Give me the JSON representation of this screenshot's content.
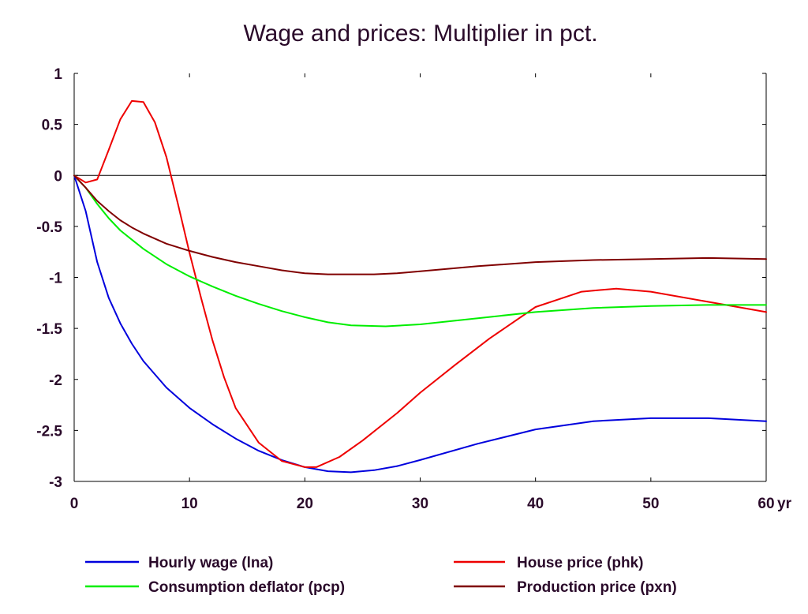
{
  "chart_data": {
    "type": "line",
    "title": "Wage and prices: Multiplier in pct.",
    "xlabel": "",
    "ylabel": "",
    "x_unit_label": "yr",
    "xlim": [
      0,
      60
    ],
    "ylim": [
      -3,
      1
    ],
    "x_ticks": [
      0,
      10,
      20,
      30,
      40,
      50,
      60
    ],
    "x_tick_labels": [
      "0",
      "10",
      "20",
      "30",
      "40",
      "50",
      "60"
    ],
    "y_ticks": [
      1,
      0.5,
      0,
      -0.5,
      -1,
      -1.5,
      -2,
      -2.5,
      -3
    ],
    "y_tick_labels": [
      "1",
      "0.5",
      "0",
      "-0.5",
      "-1",
      "-1.5",
      "-2",
      "-2.5",
      "-3"
    ],
    "zero_line": true,
    "grid": false,
    "legend_position": "bottom",
    "series": [
      {
        "name": "Hourly wage (lna)",
        "color": "#0000dd",
        "x": [
          0,
          1,
          2,
          3,
          4,
          5,
          6,
          8,
          10,
          12,
          14,
          16,
          18,
          20,
          22,
          24,
          26,
          28,
          30,
          35,
          40,
          45,
          50,
          55,
          60
        ],
        "values": [
          0,
          -0.35,
          -0.85,
          -1.2,
          -1.45,
          -1.65,
          -1.82,
          -2.08,
          -2.28,
          -2.44,
          -2.58,
          -2.7,
          -2.79,
          -2.86,
          -2.9,
          -2.91,
          -2.89,
          -2.85,
          -2.79,
          -2.63,
          -2.49,
          -2.41,
          -2.38,
          -2.38,
          -2.41
        ]
      },
      {
        "name": "House price (phk)",
        "color": "#ee0000",
        "x": [
          0,
          1,
          2,
          3,
          4,
          5,
          6,
          7,
          8,
          9,
          10,
          11,
          12,
          13,
          14,
          16,
          18,
          20,
          21,
          23,
          25,
          28,
          30,
          33,
          36,
          40,
          44,
          47,
          50,
          55,
          60
        ],
        "values": [
          0,
          -0.07,
          -0.04,
          0.25,
          0.55,
          0.73,
          0.72,
          0.52,
          0.18,
          -0.28,
          -0.76,
          -1.2,
          -1.62,
          -1.98,
          -2.28,
          -2.62,
          -2.8,
          -2.86,
          -2.86,
          -2.76,
          -2.6,
          -2.33,
          -2.13,
          -1.86,
          -1.6,
          -1.29,
          -1.14,
          -1.11,
          -1.14,
          -1.24,
          -1.34
        ]
      },
      {
        "name": "Consumption deflator (pcp)",
        "color": "#00ee00",
        "x": [
          0,
          1,
          2,
          3,
          4,
          5,
          6,
          8,
          10,
          12,
          14,
          16,
          18,
          20,
          22,
          24,
          27,
          30,
          35,
          40,
          45,
          50,
          55,
          60
        ],
        "values": [
          0,
          -0.12,
          -0.28,
          -0.42,
          -0.54,
          -0.63,
          -0.72,
          -0.87,
          -0.99,
          -1.09,
          -1.18,
          -1.26,
          -1.33,
          -1.39,
          -1.44,
          -1.47,
          -1.48,
          -1.46,
          -1.4,
          -1.34,
          -1.3,
          -1.28,
          -1.27,
          -1.27
        ]
      },
      {
        "name": "Production price (pxn)",
        "color": "#800000",
        "x": [
          0,
          1,
          2,
          3,
          4,
          5,
          6,
          8,
          10,
          12,
          14,
          16,
          18,
          20,
          22,
          24,
          26,
          28,
          30,
          35,
          40,
          45,
          50,
          55,
          60
        ],
        "values": [
          0,
          -0.12,
          -0.25,
          -0.35,
          -0.44,
          -0.51,
          -0.57,
          -0.67,
          -0.74,
          -0.8,
          -0.85,
          -0.89,
          -0.93,
          -0.96,
          -0.97,
          -0.97,
          -0.97,
          -0.96,
          -0.94,
          -0.89,
          -0.85,
          -0.83,
          -0.82,
          -0.81,
          -0.82
        ]
      }
    ]
  }
}
